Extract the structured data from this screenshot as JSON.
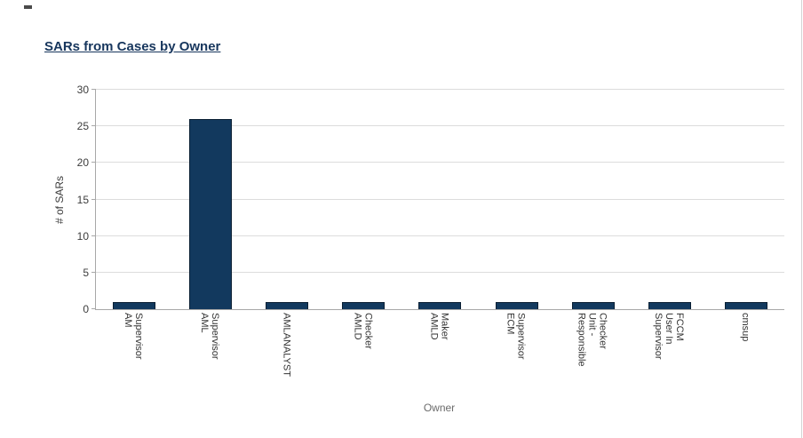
{
  "page": {
    "title_link": "SARs from Cases by Owner"
  },
  "chart_data": {
    "type": "bar",
    "title": "SARs from Cases by Owner",
    "categories": [
      "AM Supervisor",
      "AML Supervisor",
      "AMLANALYST",
      "AMLD Checker",
      "AMLD Maker",
      "ECM Supervisor",
      "Responsible Unit - Checker",
      "Supervisor User In FCCM",
      "cmsup"
    ],
    "values": [
      1,
      26,
      1,
      1,
      1,
      1,
      1,
      1,
      1
    ],
    "xlabel": "Owner",
    "ylabel": "# of SARs",
    "ylim": [
      0,
      30
    ],
    "yticks": [
      0,
      5,
      10,
      15,
      20,
      25,
      30
    ],
    "grid": true,
    "legend": "none",
    "bar_color": "#12395e"
  },
  "colors": {
    "title": "#17365d",
    "bar": "#12395e",
    "bar_border": "#0a1f33",
    "grid": "#dcdcdc",
    "axis": "#a8a8a8",
    "tick_text": "#3c3c3c",
    "axis_title_text": "#6b6b6b"
  }
}
